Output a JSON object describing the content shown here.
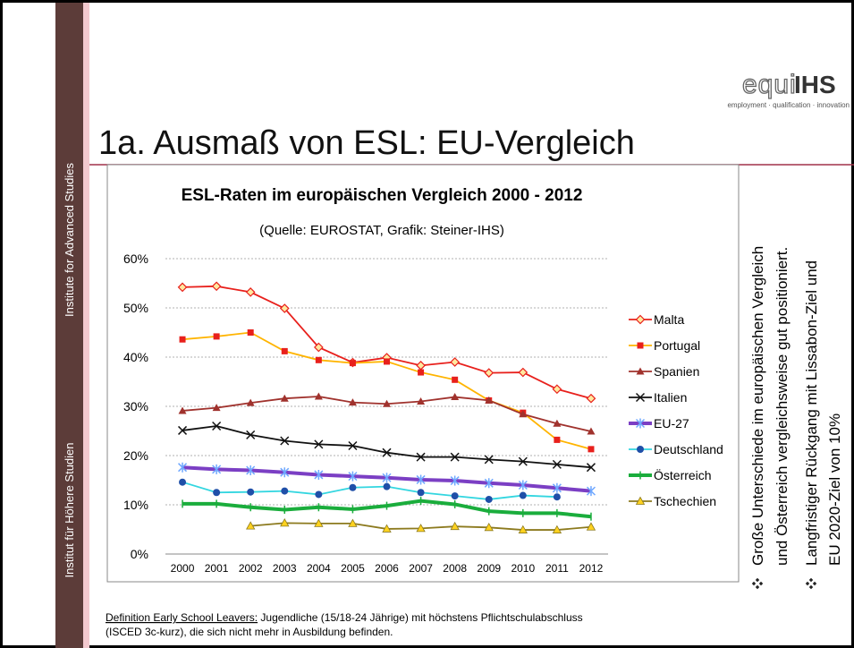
{
  "sidebar": {
    "top": "Institute for Advanced Studies",
    "bottom": "Institut für Höhere Studien"
  },
  "logo": {
    "parts": [
      "equi",
      "IHS"
    ],
    "tagline": "employment · qualification · innovation"
  },
  "slide_title": "1a. Ausmaß von ESL: EU-Vergleich",
  "chart_data": {
    "type": "line",
    "title": "ESL-Raten im europäischen Vergleich 2000 - 2012",
    "subtitle": "(Quelle: EUROSTAT, Grafik: Steiner-IHS)",
    "categories": [
      "2000",
      "2001",
      "2002",
      "2003",
      "2004",
      "2005",
      "2006",
      "2007",
      "2008",
      "2009",
      "2010",
      "2011",
      "2012"
    ],
    "ylim": [
      0,
      60
    ],
    "yticks": [
      {
        "value": 0,
        "label": "0%"
      },
      {
        "value": 10,
        "label": "10%"
      },
      {
        "value": 20,
        "label": "20%"
      },
      {
        "value": 30,
        "label": "30%"
      },
      {
        "value": 40,
        "label": "40%"
      },
      {
        "value": 50,
        "label": "50%"
      },
      {
        "value": 60,
        "label": "60%"
      }
    ],
    "grid": true,
    "legend": "right",
    "series": [
      {
        "name": "Malta",
        "color": "#e8201c",
        "marker": "diamond",
        "values": [
          54.2,
          54.4,
          53.2,
          49.9,
          42.0,
          38.9,
          39.9,
          38.3,
          39.0,
          36.8,
          36.9,
          33.5,
          31.6
        ]
      },
      {
        "name": "Portugal",
        "color": "#ffb400",
        "marker": "square",
        "values": [
          43.6,
          44.2,
          45.0,
          41.2,
          39.4,
          38.8,
          39.1,
          36.9,
          35.4,
          31.2,
          28.7,
          23.2,
          21.3
        ]
      },
      {
        "name": "Spanien",
        "color": "#a0322d",
        "marker": "triangle",
        "values": [
          29.1,
          29.7,
          30.7,
          31.6,
          32.0,
          30.8,
          30.5,
          31.0,
          31.9,
          31.2,
          28.4,
          26.5,
          24.9
        ]
      },
      {
        "name": "Italien",
        "color": "#111111",
        "marker": "x",
        "values": [
          25.1,
          26.0,
          24.2,
          23.0,
          22.3,
          22.0,
          20.6,
          19.7,
          19.7,
          19.2,
          18.8,
          18.2,
          17.6
        ]
      },
      {
        "name": "EU-27",
        "color": "#7b3fc4",
        "marker": "star",
        "values": [
          17.6,
          17.2,
          17.0,
          16.6,
          16.1,
          15.8,
          15.5,
          15.1,
          14.9,
          14.4,
          14.0,
          13.4,
          12.8
        ]
      },
      {
        "name": "Deutschland",
        "color": "#33d6e0",
        "marker": "circle",
        "values": [
          14.6,
          12.5,
          12.6,
          12.8,
          12.1,
          13.5,
          13.7,
          12.5,
          11.8,
          11.1,
          11.9,
          11.6,
          null
        ]
      },
      {
        "name": "Österreich",
        "color": "#1aad3c",
        "marker": "plus",
        "values": [
          10.2,
          10.2,
          9.5,
          9.0,
          9.5,
          9.1,
          9.8,
          10.8,
          10.1,
          8.7,
          8.3,
          8.3,
          7.6
        ]
      },
      {
        "name": "Tschechien",
        "color": "#8c7a1e",
        "marker": "triangle-y",
        "values": [
          null,
          null,
          5.7,
          6.3,
          6.2,
          6.2,
          5.1,
          5.2,
          5.6,
          5.4,
          4.9,
          4.9,
          5.5
        ]
      }
    ]
  },
  "bullets": [
    [
      "Große Unterschiede im europäischen Vergleich",
      "und Österreich vergleichsweise gut positioniert."
    ],
    [
      "Langfristiger Rückgang mit Lissabon-Ziel und",
      "EU 2020-Ziel von 10%"
    ]
  ],
  "definition": {
    "term": "Definition Early School Leavers:",
    "lines": [
      " Jugendliche (15/18-24 Jährige) mit höchstens Pflichtschulabschluss",
      "(ISCED 3c-kurz), die sich nicht mehr in Ausbildung befinden."
    ]
  }
}
